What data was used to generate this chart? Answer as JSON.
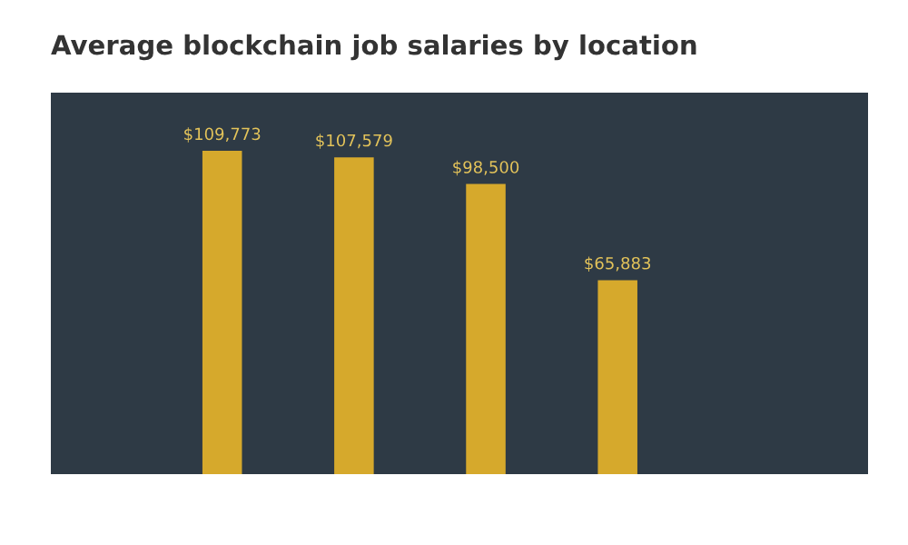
{
  "chart_data": {
    "type": "bar",
    "title": "Average blockchain job salaries by location",
    "categories": [
      null,
      null,
      null,
      null
    ],
    "values": [
      109773,
      107579,
      98500,
      65883
    ],
    "value_labels": [
      "$109,773",
      "$107,579",
      "$98,500",
      "$65,883"
    ],
    "color": "#d6a92c",
    "grid": false,
    "legend": false
  }
}
